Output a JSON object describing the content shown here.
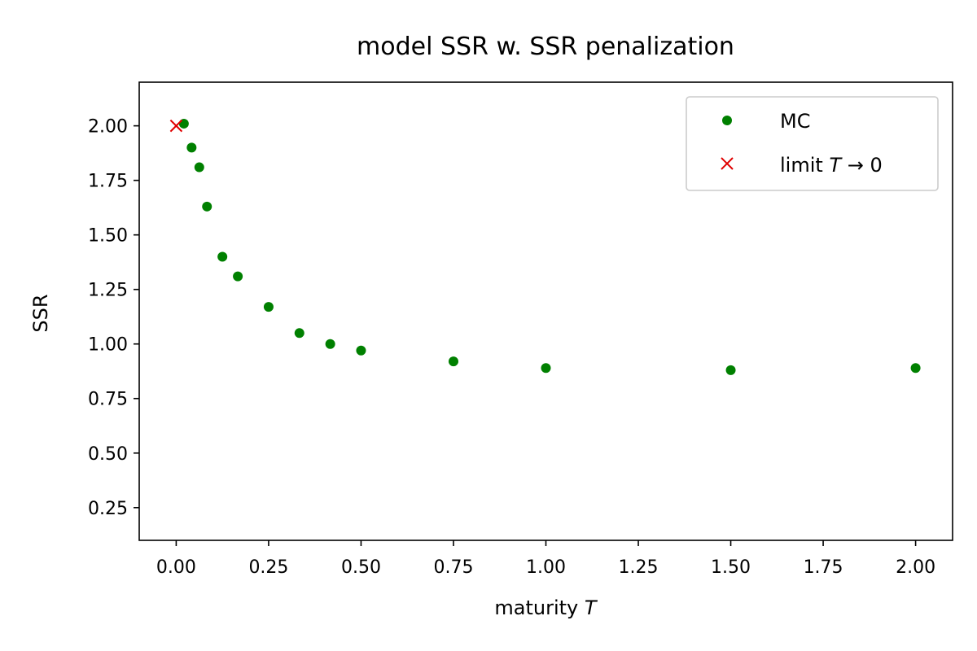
{
  "chart_data": {
    "type": "scatter",
    "title": "model SSR w. SSR penalization",
    "xlabel": "maturity",
    "xlabel_var": "T",
    "ylabel": "SSR",
    "xlim": [
      -0.1,
      2.1
    ],
    "ylim": [
      0.1,
      2.2
    ],
    "xticks": [
      "0.00",
      "0.25",
      "0.50",
      "0.75",
      "1.00",
      "1.25",
      "1.50",
      "1.75",
      "2.00"
    ],
    "yticks": [
      "0.25",
      "0.50",
      "0.75",
      "1.00",
      "1.25",
      "1.50",
      "1.75",
      "2.00"
    ],
    "grid": false,
    "legend_position": "top-right",
    "series": [
      {
        "name": "MC",
        "marker": "circle",
        "color": "#008000",
        "x": [
          0.0208,
          0.0417,
          0.0625,
          0.0833,
          0.125,
          0.1667,
          0.25,
          0.3333,
          0.4167,
          0.5,
          0.75,
          1.0,
          1.5,
          2.0
        ],
        "y": [
          2.01,
          1.9,
          1.81,
          1.63,
          1.4,
          1.31,
          1.17,
          1.05,
          1.0,
          0.97,
          0.92,
          0.89,
          0.88,
          0.89
        ]
      },
      {
        "name_prefix": "limit",
        "name_var": "T",
        "name_suffix": "→ 0",
        "marker": "x",
        "color": "#e00000",
        "x": [
          0.0
        ],
        "y": [
          2.0
        ]
      }
    ]
  }
}
